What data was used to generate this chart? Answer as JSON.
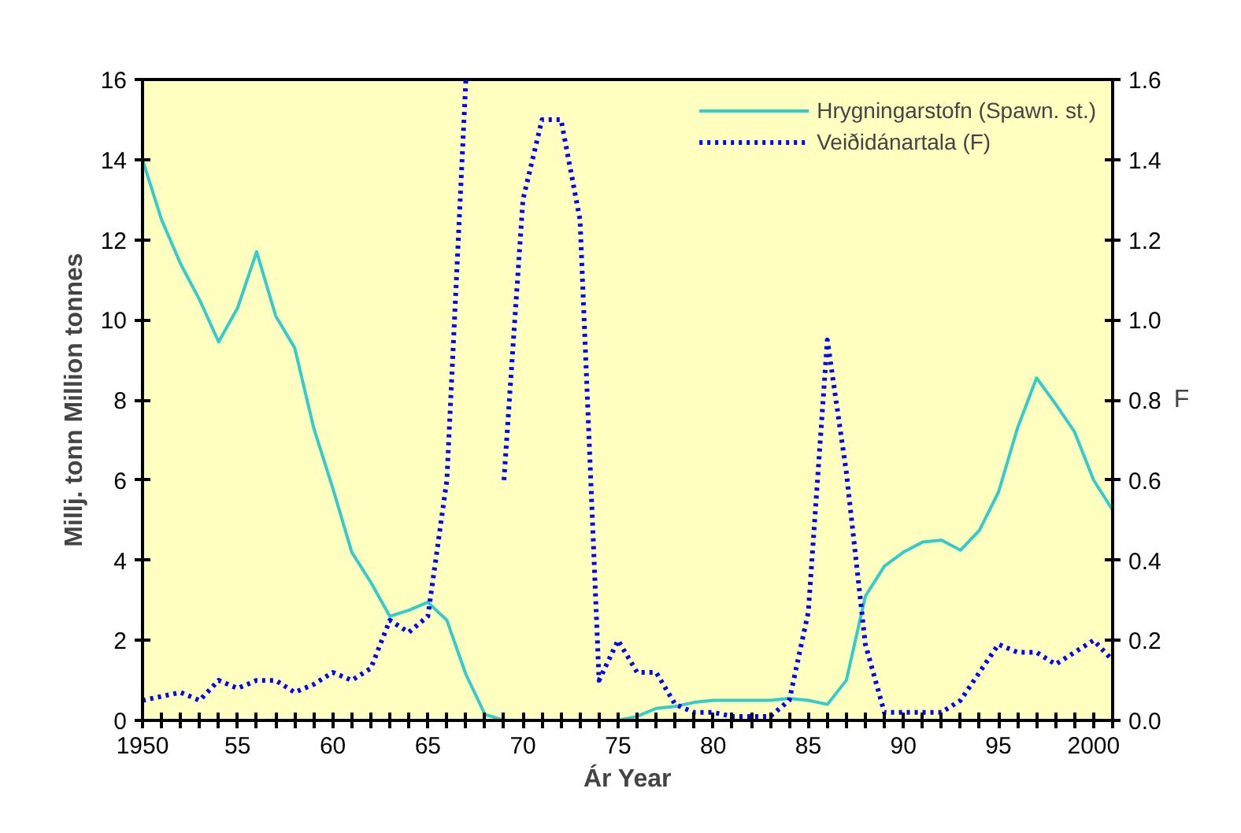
{
  "chart_data": {
    "type": "line",
    "xlabel": "Ár Year",
    "ylabel": "Millj. tonn Million tonnes",
    "y2label": "F",
    "x": [
      1950,
      1951,
      1952,
      1953,
      1954,
      1955,
      1956,
      1957,
      1958,
      1959,
      1960,
      1961,
      1962,
      1963,
      1964,
      1965,
      1966,
      1967,
      1968,
      1969,
      1970,
      1971,
      1972,
      1973,
      1974,
      1975,
      1976,
      1977,
      1978,
      1979,
      1980,
      1981,
      1982,
      1983,
      1984,
      1985,
      1986,
      1987,
      1988,
      1989,
      1990,
      1991,
      1992,
      1993,
      1994,
      1995,
      1996,
      1997,
      1998,
      1999,
      2000,
      2001
    ],
    "series": [
      {
        "name": "Hrygningarstofn (Spawn. st.)",
        "color": "#33cccc",
        "line_style": "solid",
        "values": [
          14.0,
          12.5,
          11.4,
          10.5,
          9.45,
          10.3,
          11.7,
          10.1,
          9.3,
          7.3,
          5.8,
          4.2,
          3.45,
          2.6,
          2.75,
          2.95,
          2.5,
          1.15,
          0.15,
          0,
          null,
          null,
          null,
          null,
          null,
          0,
          0.1,
          0.3,
          0.35,
          0.45,
          0.5,
          0.5,
          0.5,
          0.5,
          0.55,
          0.5,
          0.4,
          1.0,
          3.1,
          3.85,
          4.2,
          4.45,
          4.5,
          4.25,
          4.75,
          5.7,
          7.3,
          8.55,
          7.9,
          7.2,
          6.0,
          5.25
        ]
      },
      {
        "name": "Veiðidánartala (F)",
        "color": "#0000ff",
        "line_style": "dotted",
        "axis": "y2",
        "values": [
          0.05,
          0.06,
          0.07,
          0.05,
          0.1,
          0.08,
          0.1,
          0.1,
          0.07,
          0.09,
          0.12,
          0.1,
          0.13,
          0.25,
          0.22,
          0.26,
          0.6,
          1.6,
          null,
          0.6,
          1.3,
          1.5,
          1.5,
          1.25,
          0.1,
          0.2,
          0.12,
          0.12,
          0.04,
          0.02,
          0.02,
          0.01,
          0.01,
          0.01,
          0.05,
          0.27,
          0.95,
          0.62,
          0.19,
          0.02,
          0.02,
          0.02,
          0.02,
          0.05,
          0.12,
          0.19,
          0.17,
          0.17,
          0.14,
          0.17,
          0.2,
          0.15
        ]
      }
    ],
    "xlim": [
      1950,
      2001
    ],
    "xticks": [
      {
        "value": 1950,
        "label": "1950"
      },
      {
        "value": 1951,
        "label": null
      },
      {
        "value": 1952,
        "label": null
      },
      {
        "value": 1953,
        "label": null
      },
      {
        "value": 1954,
        "label": null
      },
      {
        "value": 1955,
        "label": "55"
      },
      {
        "value": 1956,
        "label": null
      },
      {
        "value": 1957,
        "label": null
      },
      {
        "value": 1958,
        "label": null
      },
      {
        "value": 1959,
        "label": null
      },
      {
        "value": 1960,
        "label": "60"
      },
      {
        "value": 1961,
        "label": null
      },
      {
        "value": 1962,
        "label": null
      },
      {
        "value": 1963,
        "label": null
      },
      {
        "value": 1964,
        "label": null
      },
      {
        "value": 1965,
        "label": "65"
      },
      {
        "value": 1966,
        "label": null
      },
      {
        "value": 1967,
        "label": null
      },
      {
        "value": 1968,
        "label": null
      },
      {
        "value": 1969,
        "label": null
      },
      {
        "value": 1970,
        "label": "70"
      },
      {
        "value": 1971,
        "label": null
      },
      {
        "value": 1972,
        "label": null
      },
      {
        "value": 1973,
        "label": null
      },
      {
        "value": 1974,
        "label": null
      },
      {
        "value": 1975,
        "label": "75"
      },
      {
        "value": 1976,
        "label": null
      },
      {
        "value": 1977,
        "label": null
      },
      {
        "value": 1978,
        "label": null
      },
      {
        "value": 1979,
        "label": null
      },
      {
        "value": 1980,
        "label": "80"
      },
      {
        "value": 1981,
        "label": null
      },
      {
        "value": 1982,
        "label": null
      },
      {
        "value": 1983,
        "label": null
      },
      {
        "value": 1984,
        "label": null
      },
      {
        "value": 1985,
        "label": "85"
      },
      {
        "value": 1986,
        "label": null
      },
      {
        "value": 1987,
        "label": null
      },
      {
        "value": 1988,
        "label": null
      },
      {
        "value": 1989,
        "label": null
      },
      {
        "value": 1990,
        "label": "90"
      },
      {
        "value": 1991,
        "label": null
      },
      {
        "value": 1992,
        "label": null
      },
      {
        "value": 1993,
        "label": null
      },
      {
        "value": 1994,
        "label": null
      },
      {
        "value": 1995,
        "label": "95"
      },
      {
        "value": 1996,
        "label": null
      },
      {
        "value": 1997,
        "label": null
      },
      {
        "value": 1998,
        "label": null
      },
      {
        "value": 1999,
        "label": null
      },
      {
        "value": 2000,
        "label": "2000"
      },
      {
        "value": 2001,
        "label": null
      }
    ],
    "ylim": [
      0,
      16
    ],
    "yticks": [
      0,
      2,
      4,
      6,
      8,
      10,
      12,
      14,
      16
    ],
    "y2lim": [
      0,
      1.6
    ],
    "y2ticks": [
      {
        "value": 0,
        "label": "0.0"
      },
      {
        "value": 0.2,
        "label": "0.2"
      },
      {
        "value": 0.4,
        "label": "0.4"
      },
      {
        "value": 0.6,
        "label": "0.6"
      },
      {
        "value": 0.8,
        "label": "0.8"
      },
      {
        "value": 1.0,
        "label": "1.0"
      },
      {
        "value": 1.2,
        "label": "1.2"
      },
      {
        "value": 1.4,
        "label": "1.4"
      },
      {
        "value": 1.6,
        "label": "1.6"
      }
    ],
    "legend": "top right",
    "grid": false
  }
}
